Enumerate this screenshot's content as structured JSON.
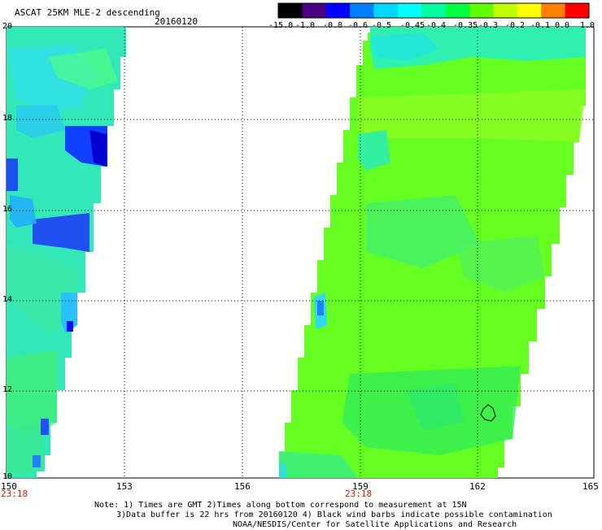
{
  "header": {
    "title": "ASCAT 25KM MLE-2 descending",
    "date": "20160120"
  },
  "colorbar": {
    "labels": [
      "-15.0",
      "-1.0",
      "-0.8",
      "-0.6",
      "-0.5",
      "-0.45",
      "-0.4",
      "-0.35",
      "-0.3",
      "-0.2",
      "-0.1",
      "0.0",
      "1.0"
    ],
    "colors": [
      "#000000",
      "#4b0082",
      "#0000ff",
      "#0080ff",
      "#00d8ff",
      "#00ffff",
      "#00ffa0",
      "#00ff40",
      "#60ff00",
      "#c0ff00",
      "#ffff00",
      "#ff8000",
      "#ff0000"
    ]
  },
  "map": {
    "y_labels": [
      "20",
      "18",
      "16",
      "14",
      "12",
      "10"
    ],
    "x_labels": [
      "150",
      "153",
      "156",
      "159",
      "162",
      "165"
    ],
    "times": [
      "23:18",
      "23:18"
    ],
    "grid": true,
    "contamination_marker": "black wind barb outline"
  },
  "notes": {
    "line1": "Note: 1) Times are GMT 2)Times along bottom correspond to measurement at 15N",
    "line2": "3)Data buffer is 22 hrs from 20160120 4) Black wind barbs indicate possible contamination",
    "line3": "NOAA/NESDIS/Center for Satellite Applications and Research"
  }
}
